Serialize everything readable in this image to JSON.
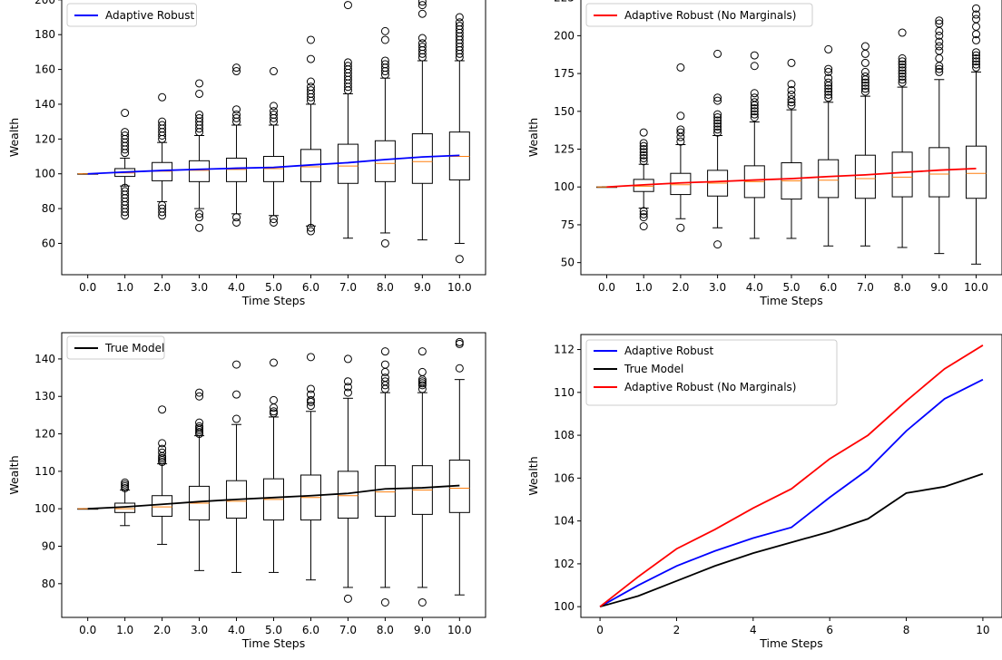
{
  "chart_data": [
    {
      "type": "box",
      "panel": "top-left",
      "xlabel": "Time Steps",
      "ylabel": "Wealth",
      "ylim": [
        42,
        202
      ],
      "yticks": [
        60,
        80,
        100,
        120,
        140,
        160,
        180,
        200
      ],
      "categories": [
        "0.0",
        "1.0",
        "2.0",
        "3.0",
        "4.0",
        "5.0",
        "6.0",
        "7.0",
        "8.0",
        "9.0",
        "10.0"
      ],
      "legend": {
        "position": "top-left",
        "entries": [
          {
            "label": "Adaptive Robust",
            "color": "#0000ff"
          }
        ]
      },
      "boxes": [
        {
          "q1": 100,
          "median": 100,
          "q3": 100,
          "wlo": 100,
          "whi": 100,
          "outliers": []
        },
        {
          "q1": 98.5,
          "median": 100.5,
          "q3": 103,
          "wlo": 93,
          "whi": 109,
          "outliers": [
            76,
            78,
            80,
            82,
            84,
            86,
            88,
            90,
            92,
            112,
            114,
            116,
            118,
            120,
            122,
            124,
            135
          ]
        },
        {
          "q1": 96,
          "median": 101.5,
          "q3": 106.5,
          "wlo": 84,
          "whi": 118,
          "outliers": [
            76,
            78,
            80,
            82,
            120,
            122,
            124,
            126,
            128,
            130,
            144
          ]
        },
        {
          "q1": 95.5,
          "median": 102,
          "q3": 107.5,
          "wlo": 80,
          "whi": 122,
          "outliers": [
            69,
            75,
            77,
            124,
            126,
            128,
            130,
            132,
            134,
            146,
            152
          ]
        },
        {
          "q1": 95.5,
          "median": 102.5,
          "q3": 109,
          "wlo": 77,
          "whi": 128,
          "outliers": [
            72,
            75,
            130,
            132,
            134,
            137,
            159,
            161
          ]
        },
        {
          "q1": 95.5,
          "median": 103,
          "q3": 110,
          "wlo": 76,
          "whi": 128,
          "outliers": [
            72,
            74,
            130,
            132,
            134,
            136,
            139,
            159
          ]
        },
        {
          "q1": 95.5,
          "median": 104,
          "q3": 114,
          "wlo": 70,
          "whi": 140,
          "outliers": [
            67,
            69,
            142,
            144,
            146,
            148,
            150,
            153,
            166,
            177
          ]
        },
        {
          "q1": 94.5,
          "median": 104.5,
          "q3": 117,
          "wlo": 63,
          "whi": 146,
          "outliers": [
            148,
            150,
            152,
            154,
            156,
            158,
            160,
            162,
            164,
            197
          ]
        },
        {
          "q1": 95.5,
          "median": 106,
          "q3": 119,
          "wlo": 66,
          "whi": 155,
          "outliers": [
            60,
            157,
            159,
            161,
            163,
            165,
            177,
            182
          ]
        },
        {
          "q1": 94.5,
          "median": 107,
          "q3": 123,
          "wlo": 62,
          "whi": 165,
          "outliers": [
            167,
            169,
            171,
            173,
            175,
            178,
            192,
            197,
            199
          ]
        },
        {
          "q1": 96.5,
          "median": 110,
          "q3": 124,
          "wlo": 60,
          "whi": 165,
          "outliers": [
            51,
            167,
            169,
            171,
            173,
            175,
            177,
            179,
            181,
            183,
            185,
            187,
            190
          ]
        }
      ],
      "mean_line": {
        "name": "Adaptive Robust",
        "color": "#0000ff",
        "x": [
          0,
          1,
          2,
          3,
          4,
          5,
          6,
          7,
          8,
          9,
          10
        ],
        "y": [
          100,
          101,
          101.9,
          102.6,
          103.2,
          103.7,
          105.1,
          106.4,
          108.2,
          109.7,
          110.6
        ]
      }
    },
    {
      "type": "box",
      "panel": "top-right",
      "xlabel": "Time Steps",
      "ylabel": "Wealth",
      "ylim": [
        42,
        226
      ],
      "yticks": [
        50,
        75,
        100,
        125,
        150,
        175,
        200,
        225
      ],
      "categories": [
        "0.0",
        "1.0",
        "2.0",
        "3.0",
        "4.0",
        "5.0",
        "6.0",
        "7.0",
        "8.0",
        "9.0",
        "10.0"
      ],
      "legend": {
        "position": "top-left",
        "entries": [
          {
            "label": "Adaptive Robust (No Marginals)",
            "color": "#ff0000"
          }
        ]
      },
      "boxes": [
        {
          "q1": 100,
          "median": 100,
          "q3": 100,
          "wlo": 100,
          "whi": 100,
          "outliers": []
        },
        {
          "q1": 97,
          "median": 100.5,
          "q3": 105,
          "wlo": 86,
          "whi": 115,
          "outliers": [
            74,
            80,
            82,
            84,
            117,
            119,
            121,
            123,
            125,
            127,
            129,
            136
          ]
        },
        {
          "q1": 95,
          "median": 101.5,
          "q3": 109,
          "wlo": 79,
          "whi": 128,
          "outliers": [
            73,
            130,
            133,
            136,
            138,
            147,
            179
          ]
        },
        {
          "q1": 94,
          "median": 102.5,
          "q3": 111,
          "wlo": 73,
          "whi": 134,
          "outliers": [
            62,
            136,
            138,
            140,
            142,
            144,
            146,
            148,
            157,
            159,
            188
          ]
        },
        {
          "q1": 93,
          "median": 103.5,
          "q3": 114,
          "wlo": 66,
          "whi": 143,
          "outliers": [
            146,
            148,
            150,
            152,
            154,
            156,
            159,
            162,
            180,
            187
          ]
        },
        {
          "q1": 92,
          "median": 104,
          "q3": 116,
          "wlo": 66,
          "whi": 151,
          "outliers": [
            154,
            156,
            158,
            161,
            164,
            168,
            182
          ]
        },
        {
          "q1": 93,
          "median": 104.5,
          "q3": 118,
          "wlo": 61,
          "whi": 156,
          "outliers": [
            159,
            161,
            163,
            165,
            167,
            169,
            172,
            176,
            178,
            191
          ]
        },
        {
          "q1": 92.5,
          "median": 105.5,
          "q3": 121,
          "wlo": 61,
          "whi": 160,
          "outliers": [
            163,
            165,
            167,
            169,
            171,
            173,
            176,
            182,
            188,
            193
          ]
        },
        {
          "q1": 93.5,
          "median": 106.5,
          "q3": 123,
          "wlo": 60,
          "whi": 166,
          "outliers": [
            169,
            171,
            173,
            175,
            177,
            179,
            181,
            183,
            185,
            202
          ]
        },
        {
          "q1": 93.5,
          "median": 108.5,
          "q3": 126,
          "wlo": 56,
          "whi": 171,
          "outliers": [
            176,
            178,
            180,
            185,
            190,
            193,
            196,
            200,
            203,
            208,
            210
          ]
        },
        {
          "q1": 92.5,
          "median": 109,
          "q3": 127,
          "wlo": 49,
          "whi": 176,
          "outliers": [
            179,
            181,
            183,
            185,
            187,
            189,
            197,
            201,
            206,
            211,
            214,
            218
          ]
        }
      ],
      "mean_line": {
        "name": "Adaptive Robust (No Marginals)",
        "color": "#ff0000",
        "x": [
          0,
          1,
          2,
          3,
          4,
          5,
          6,
          7,
          8,
          9,
          10
        ],
        "y": [
          100,
          101.4,
          102.7,
          103.6,
          104.6,
          105.5,
          106.9,
          108.0,
          109.6,
          111.1,
          112.2
        ]
      }
    },
    {
      "type": "box",
      "panel": "bottom-left",
      "xlabel": "Time Steps",
      "ylabel": "Wealth",
      "ylim": [
        71,
        147
      ],
      "yticks": [
        80,
        90,
        100,
        110,
        120,
        130,
        140
      ],
      "categories": [
        "0.0",
        "1.0",
        "2.0",
        "3.0",
        "4.0",
        "5.0",
        "6.0",
        "7.0",
        "8.0",
        "9.0",
        "10.0"
      ],
      "legend": {
        "position": "top-left",
        "entries": [
          {
            "label": "True Model",
            "color": "#000000"
          }
        ]
      },
      "boxes": [
        {
          "q1": 100,
          "median": 100,
          "q3": 100,
          "wlo": 100,
          "whi": 100,
          "outliers": []
        },
        {
          "q1": 99,
          "median": 100,
          "q3": 101.5,
          "wlo": 95.5,
          "whi": 105,
          "outliers": [
            105.5,
            106,
            106.5,
            107
          ]
        },
        {
          "q1": 98,
          "median": 100.5,
          "q3": 103.5,
          "wlo": 90.5,
          "whi": 112,
          "outliers": [
            112.5,
            113,
            113.5,
            114,
            115,
            116,
            117.5,
            126.5
          ]
        },
        {
          "q1": 97,
          "median": 101.5,
          "q3": 106,
          "wlo": 83.5,
          "whi": 119.5,
          "outliers": [
            120,
            120.5,
            121,
            121.5,
            122,
            123,
            130,
            131
          ]
        },
        {
          "q1": 97.5,
          "median": 102,
          "q3": 107.5,
          "wlo": 83,
          "whi": 122.5,
          "outliers": [
            124,
            130.5,
            138.5
          ]
        },
        {
          "q1": 97,
          "median": 102.5,
          "q3": 108,
          "wlo": 83,
          "whi": 124.5,
          "outliers": [
            125.5,
            126,
            127,
            129,
            139
          ]
        },
        {
          "q1": 97,
          "median": 103,
          "q3": 109,
          "wlo": 81,
          "whi": 126,
          "outliers": [
            127.5,
            128.5,
            129,
            130.5,
            132,
            140.5
          ]
        },
        {
          "q1": 97.5,
          "median": 103.5,
          "q3": 110,
          "wlo": 79,
          "whi": 129.5,
          "outliers": [
            76,
            131,
            132.5,
            134,
            140
          ]
        },
        {
          "q1": 98,
          "median": 104.5,
          "q3": 111.5,
          "wlo": 79,
          "whi": 131,
          "outliers": [
            75,
            132,
            133,
            134,
            135,
            136.5,
            138.5,
            142
          ]
        },
        {
          "q1": 98.5,
          "median": 105,
          "q3": 111.5,
          "wlo": 79,
          "whi": 131,
          "outliers": [
            75,
            132,
            133,
            133.5,
            134,
            134.5,
            136.5,
            142
          ]
        },
        {
          "q1": 99,
          "median": 105.5,
          "q3": 113,
          "wlo": 77,
          "whi": 134.5,
          "outliers": [
            137.5,
            144,
            144.5
          ]
        }
      ],
      "mean_line": {
        "name": "True Model",
        "color": "#000000",
        "x": [
          0,
          1,
          2,
          3,
          4,
          5,
          6,
          7,
          8,
          9,
          10
        ],
        "y": [
          100,
          100.5,
          101.2,
          101.9,
          102.5,
          103.0,
          103.5,
          104.1,
          105.3,
          105.6,
          106.2
        ]
      }
    },
    {
      "type": "line",
      "panel": "bottom-right",
      "xlabel": "Time Steps",
      "ylabel": "Wealth",
      "xlim": [
        -0.5,
        10.5
      ],
      "ylim": [
        99.5,
        112.7
      ],
      "xticks": [
        0,
        2,
        4,
        6,
        8,
        10
      ],
      "yticks": [
        100,
        102,
        104,
        106,
        108,
        110,
        112
      ],
      "legend": {
        "position": "top-left"
      },
      "x": [
        0,
        1,
        2,
        3,
        4,
        5,
        6,
        7,
        8,
        9,
        10
      ],
      "series": [
        {
          "name": "Adaptive Robust",
          "color": "#0000ff",
          "values": [
            100,
            101,
            101.9,
            102.6,
            103.2,
            103.7,
            105.1,
            106.4,
            108.2,
            109.7,
            110.6
          ]
        },
        {
          "name": "True Model",
          "color": "#000000",
          "values": [
            100,
            100.5,
            101.2,
            101.9,
            102.5,
            103.0,
            103.5,
            104.1,
            105.3,
            105.6,
            106.2
          ]
        },
        {
          "name": "Adaptive Robust (No Marginals)",
          "color": "#ff0000",
          "values": [
            100,
            101.4,
            102.7,
            103.6,
            104.6,
            105.5,
            106.9,
            108.0,
            109.6,
            111.1,
            112.2
          ]
        }
      ]
    }
  ]
}
